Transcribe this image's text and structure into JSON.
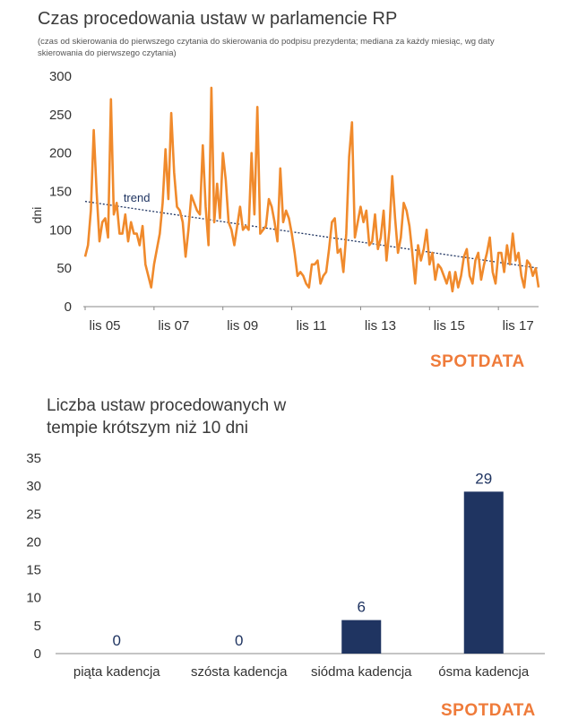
{
  "colors": {
    "line": "#f08a2c",
    "bar": "#1f3461",
    "trend": "#1f3461",
    "brand": "#ef7b3a",
    "axis": "#888888"
  },
  "brand": "SPOTDATA",
  "chart_data": [
    {
      "type": "line",
      "title": "Czas procedowania ustaw w parlamencie RP",
      "subtitle": "(czas od skierowania do pierwszego czytania do skierowania do podpisu prezydenta; mediana za każdy miesiąc, wg daty skierowania do pierwszego czytania)",
      "ylabel": "dni",
      "ylim": [
        0,
        300
      ],
      "yticks": [
        "300",
        "250",
        "200",
        "150",
        "100",
        "50",
        "0"
      ],
      "xticks": [
        "lis 05",
        "lis 07",
        "lis 09",
        "lis 11",
        "lis 13",
        "lis 15",
        "lis 17"
      ],
      "xlim_months": [
        0,
        158
      ],
      "trend_label": "trend",
      "trend": {
        "start": 137,
        "end": 50
      },
      "series": [
        {
          "values": [
            65,
            80,
            125,
            230,
            150,
            85,
            110,
            115,
            90,
            270,
            120,
            135,
            95,
            95,
            120,
            85,
            110,
            95,
            95,
            80,
            105,
            55,
            40,
            25,
            55,
            75,
            95,
            135,
            205,
            140,
            252,
            175,
            130,
            125,
            110,
            65,
            100,
            145,
            135,
            125,
            120,
            210,
            130,
            80,
            285,
            110,
            160,
            115,
            200,
            165,
            110,
            100,
            80,
            105,
            130,
            100,
            105,
            100,
            200,
            120,
            260,
            95,
            100,
            105,
            140,
            130,
            110,
            85,
            180,
            110,
            125,
            115,
            95,
            70,
            40,
            45,
            40,
            30,
            25,
            55,
            55,
            60,
            30,
            40,
            45,
            75,
            110,
            115,
            70,
            75,
            45,
            95,
            195,
            240,
            90,
            110,
            130,
            110,
            125,
            80,
            85,
            120,
            75,
            90,
            125,
            60,
            100,
            170,
            115,
            70,
            90,
            135,
            125,
            105,
            70,
            30,
            80,
            60,
            75,
            100,
            55,
            70,
            35,
            55,
            50,
            40,
            30,
            45,
            20,
            45,
            25,
            40,
            65,
            75,
            40,
            30,
            60,
            70,
            35,
            55,
            70,
            90,
            45,
            30,
            70,
            70,
            45,
            80,
            55,
            95,
            60,
            70,
            40,
            25,
            60,
            55,
            40,
            50,
            25
          ]
        }
      ]
    },
    {
      "type": "bar",
      "title": "Liczba ustaw procedowanych w tempie krótszym niż 10 dni",
      "categories": [
        "piąta kadencja",
        "szósta kadencja",
        "siódma kadencja",
        "ósma kadencja"
      ],
      "values": [
        0,
        0,
        6,
        29
      ],
      "data_labels": [
        "0",
        "0",
        "6",
        "29"
      ],
      "ylim": [
        0,
        35
      ],
      "yticks": [
        "35",
        "30",
        "25",
        "20",
        "15",
        "10",
        "5",
        "0"
      ]
    }
  ]
}
